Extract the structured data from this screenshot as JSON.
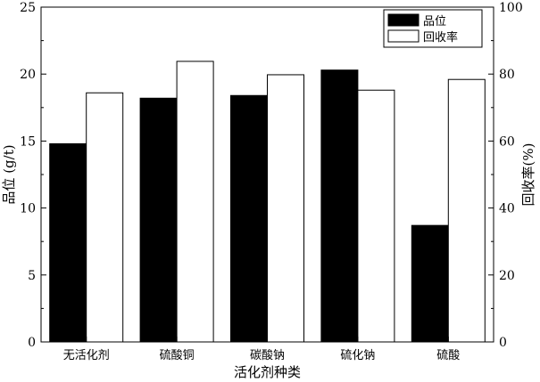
{
  "chart_data": {
    "type": "bar",
    "categories": [
      "无活化剂",
      "硫酸铜",
      "碳酸钠",
      "硫化钠",
      "硫酸"
    ],
    "series": [
      {
        "name": "品位",
        "axis": "left",
        "fill": "#000000",
        "values": [
          14.8,
          18.2,
          18.4,
          20.3,
          8.7
        ]
      },
      {
        "name": "回收率",
        "axis": "right",
        "fill": "#ffffff",
        "values": [
          74.4,
          83.8,
          79.8,
          75.2,
          78.4
        ]
      }
    ],
    "xlabel": "活化剂种类",
    "ylabel_left": "品位 (g/t)",
    "ylabel_right": "回收率(%)",
    "ylim_left": [
      0,
      25
    ],
    "ylim_right": [
      0,
      100
    ],
    "yticks_left": [
      "0",
      "5",
      "10",
      "15",
      "20",
      "25"
    ],
    "yticks_right": [
      "0",
      "20",
      "40",
      "60",
      "80",
      "100"
    ],
    "legend_position": "top-right",
    "grid": false
  }
}
